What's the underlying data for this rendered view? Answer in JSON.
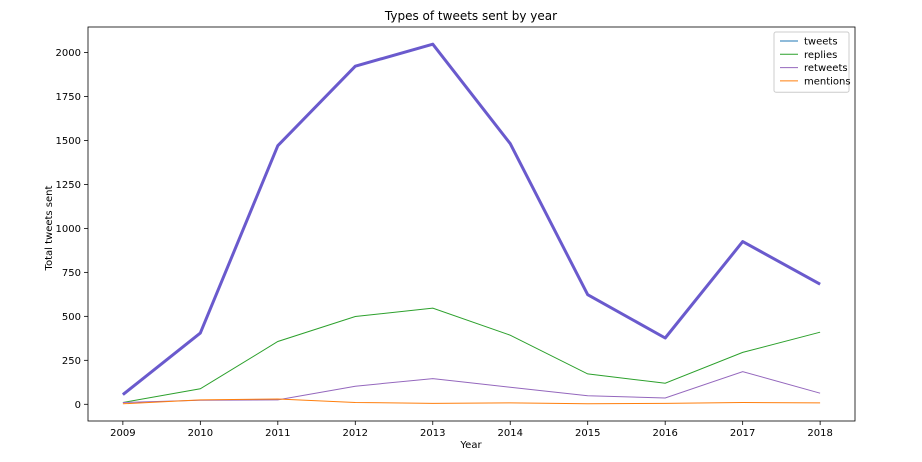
{
  "chart_data": {
    "type": "line",
    "title": "Types of tweets sent by year",
    "xlabel": "Year",
    "ylabel": "Total tweets sent",
    "x": [
      2009,
      2010,
      2011,
      2012,
      2013,
      2014,
      2015,
      2016,
      2017,
      2018
    ],
    "x_tick_labels": [
      "2009",
      "2010",
      "2011",
      "2012",
      "2013",
      "2014",
      "2015",
      "2016",
      "2017",
      "2018"
    ],
    "xlim": [
      2008.55,
      2018.45
    ],
    "ylim": [
      -95,
      2145
    ],
    "y_ticks": [
      0,
      250,
      500,
      750,
      1000,
      1250,
      1500,
      1750,
      2000
    ],
    "y_tick_labels": [
      "0",
      "250",
      "500",
      "750",
      "1000",
      "1250",
      "1500",
      "1750",
      "2000"
    ],
    "grid": false,
    "legend_position": "top-right",
    "series": [
      {
        "name": "tweets",
        "color": "#1f77b4",
        "values": [
          55,
          405,
          1470,
          1922,
          2047,
          1482,
          623,
          377,
          925,
          683
        ]
      },
      {
        "name": "replies",
        "color": "#2ca02c",
        "values": [
          10,
          88,
          357,
          499,
          547,
          393,
          173,
          120,
          295,
          410
        ]
      },
      {
        "name": "retweets",
        "color": "#9467bd",
        "values": [
          10,
          23,
          25,
          103,
          146,
          97,
          49,
          36,
          186,
          63
        ]
      },
      {
        "name": "mentions",
        "color": "#ff7f0e",
        "values": [
          3,
          25,
          30,
          10,
          5,
          8,
          3,
          5,
          10,
          8
        ]
      }
    ],
    "overlay": {
      "color": "#6a5acd",
      "values": [
        55,
        405,
        1470,
        1922,
        2047,
        1482,
        623,
        377,
        925,
        683
      ]
    }
  }
}
